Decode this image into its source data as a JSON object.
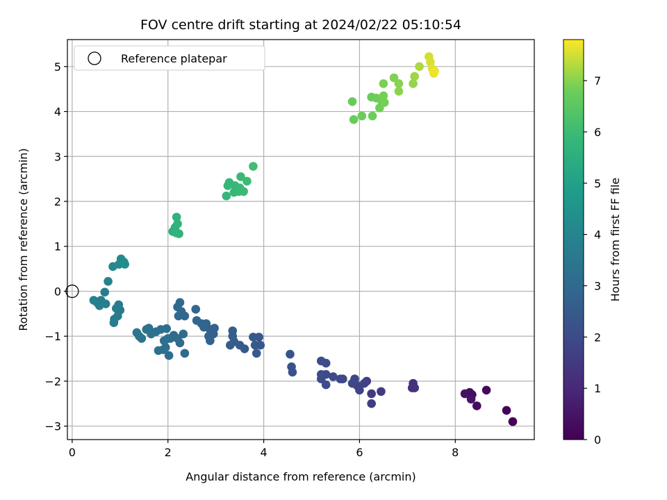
{
  "chart_data": {
    "type": "scatter",
    "title": "FOV centre drift starting at 2024/02/22 05:10:54",
    "xlabel": "Angular distance from reference (arcmin)",
    "ylabel": "Rotation from reference (arcmin)",
    "xlim": [
      -0.1,
      9.65
    ],
    "ylim": [
      -3.3,
      5.6
    ],
    "xticks": [
      0,
      2,
      4,
      6,
      8
    ],
    "yticks": [
      -3,
      -2,
      -1,
      0,
      1,
      2,
      3,
      4,
      5
    ],
    "grid": true,
    "legend": {
      "position": "top-left",
      "entries": [
        "Reference platepar"
      ]
    },
    "reference_point": {
      "x": 0,
      "y": 0
    },
    "colorbar": {
      "label": "Hours from first FF file",
      "range": [
        0,
        7.8
      ],
      "ticks": [
        0,
        1,
        2,
        3,
        4,
        5,
        6,
        7
      ],
      "colormap": "viridis"
    },
    "points": [
      {
        "x": 9.2,
        "y": -2.9,
        "h": 0.05
      },
      {
        "x": 9.07,
        "y": -2.65,
        "h": 0.1
      },
      {
        "x": 8.65,
        "y": -2.2,
        "h": 0.2
      },
      {
        "x": 8.45,
        "y": -2.55,
        "h": 0.25
      },
      {
        "x": 8.35,
        "y": -2.3,
        "h": 0.3
      },
      {
        "x": 8.3,
        "y": -2.25,
        "h": 0.35
      },
      {
        "x": 8.2,
        "y": -2.28,
        "h": 0.4
      },
      {
        "x": 8.33,
        "y": -2.4,
        "h": 0.45
      },
      {
        "x": 7.12,
        "y": -2.05,
        "h": 1.2
      },
      {
        "x": 7.1,
        "y": -2.15,
        "h": 1.25
      },
      {
        "x": 7.15,
        "y": -2.15,
        "h": 1.3
      },
      {
        "x": 6.45,
        "y": -2.23,
        "h": 1.5
      },
      {
        "x": 6.25,
        "y": -2.28,
        "h": 1.55
      },
      {
        "x": 6.25,
        "y": -2.5,
        "h": 1.6
      },
      {
        "x": 6.15,
        "y": -2.0,
        "h": 1.65
      },
      {
        "x": 6.1,
        "y": -2.05,
        "h": 1.7
      },
      {
        "x": 6.0,
        "y": -2.2,
        "h": 1.75
      },
      {
        "x": 5.95,
        "y": -2.1,
        "h": 1.8
      },
      {
        "x": 5.9,
        "y": -1.95,
        "h": 1.85
      },
      {
        "x": 5.85,
        "y": -2.05,
        "h": 1.9
      },
      {
        "x": 5.65,
        "y": -1.95,
        "h": 1.92
      },
      {
        "x": 5.6,
        "y": -1.95,
        "h": 1.95
      },
      {
        "x": 5.45,
        "y": -1.9,
        "h": 1.97
      },
      {
        "x": 5.3,
        "y": -1.85,
        "h": 2.0
      },
      {
        "x": 5.3,
        "y": -2.08,
        "h": 2.02
      },
      {
        "x": 5.3,
        "y": -1.6,
        "h": 2.04
      },
      {
        "x": 5.2,
        "y": -1.55,
        "h": 2.06
      },
      {
        "x": 5.2,
        "y": -1.85,
        "h": 2.08
      },
      {
        "x": 5.2,
        "y": -1.95,
        "h": 2.1
      },
      {
        "x": 4.6,
        "y": -1.8,
        "h": 2.2
      },
      {
        "x": 4.58,
        "y": -1.68,
        "h": 2.22
      },
      {
        "x": 4.55,
        "y": -1.4,
        "h": 2.25
      },
      {
        "x": 3.93,
        "y": -1.2,
        "h": 2.4
      },
      {
        "x": 3.9,
        "y": -1.02,
        "h": 2.42
      },
      {
        "x": 3.85,
        "y": -1.38,
        "h": 2.44
      },
      {
        "x": 3.82,
        "y": -1.2,
        "h": 2.46
      },
      {
        "x": 3.78,
        "y": -1.02,
        "h": 2.48
      },
      {
        "x": 3.6,
        "y": -1.28,
        "h": 2.5
      },
      {
        "x": 3.5,
        "y": -1.2,
        "h": 2.52
      },
      {
        "x": 3.38,
        "y": -1.12,
        "h": 2.55
      },
      {
        "x": 3.35,
        "y": -0.88,
        "h": 2.57
      },
      {
        "x": 3.35,
        "y": -1.0,
        "h": 2.6
      },
      {
        "x": 3.3,
        "y": -1.2,
        "h": 2.62
      },
      {
        "x": 2.97,
        "y": -0.82,
        "h": 2.7
      },
      {
        "x": 2.95,
        "y": -0.95,
        "h": 2.72
      },
      {
        "x": 2.88,
        "y": -0.85,
        "h": 2.74
      },
      {
        "x": 2.88,
        "y": -1.1,
        "h": 2.76
      },
      {
        "x": 2.85,
        "y": -1.0,
        "h": 2.78
      },
      {
        "x": 2.8,
        "y": -0.72,
        "h": 2.8
      },
      {
        "x": 2.75,
        "y": -0.8,
        "h": 2.82
      },
      {
        "x": 2.7,
        "y": -0.72,
        "h": 2.84
      },
      {
        "x": 2.6,
        "y": -0.65,
        "h": 2.86
      },
      {
        "x": 2.58,
        "y": -0.4,
        "h": 2.88
      },
      {
        "x": 2.35,
        "y": -0.55,
        "h": 2.9
      },
      {
        "x": 2.28,
        "y": -0.45,
        "h": 2.92
      },
      {
        "x": 2.25,
        "y": -0.25,
        "h": 2.94
      },
      {
        "x": 2.22,
        "y": -0.55,
        "h": 2.96
      },
      {
        "x": 2.2,
        "y": -0.35,
        "h": 2.98
      },
      {
        "x": 2.35,
        "y": -1.38,
        "h": 3.0
      },
      {
        "x": 2.32,
        "y": -0.95,
        "h": 3.02
      },
      {
        "x": 2.25,
        "y": -1.15,
        "h": 3.04
      },
      {
        "x": 2.2,
        "y": -1.05,
        "h": 3.06
      },
      {
        "x": 2.12,
        "y": -0.98,
        "h": 3.08
      },
      {
        "x": 2.05,
        "y": -1.05,
        "h": 3.1
      },
      {
        "x": 2.02,
        "y": -1.43,
        "h": 3.12
      },
      {
        "x": 2.0,
        "y": -1.05,
        "h": 3.14
      },
      {
        "x": 1.97,
        "y": -0.83,
        "h": 3.16
      },
      {
        "x": 1.95,
        "y": -1.25,
        "h": 3.18
      },
      {
        "x": 1.92,
        "y": -1.1,
        "h": 3.2
      },
      {
        "x": 1.9,
        "y": -1.3,
        "h": 3.22
      },
      {
        "x": 1.85,
        "y": -0.85,
        "h": 3.24
      },
      {
        "x": 1.8,
        "y": -1.32,
        "h": 3.26
      },
      {
        "x": 1.75,
        "y": -0.9,
        "h": 3.28
      },
      {
        "x": 1.65,
        "y": -0.95,
        "h": 3.3
      },
      {
        "x": 1.6,
        "y": -0.82,
        "h": 3.32
      },
      {
        "x": 1.55,
        "y": -0.85,
        "h": 3.34
      },
      {
        "x": 1.45,
        "y": -1.05,
        "h": 3.36
      },
      {
        "x": 1.4,
        "y": -1.0,
        "h": 3.38
      },
      {
        "x": 1.35,
        "y": -0.92,
        "h": 3.4
      },
      {
        "x": 1.0,
        "y": -0.42,
        "h": 3.6
      },
      {
        "x": 0.97,
        "y": -0.3,
        "h": 3.62
      },
      {
        "x": 0.95,
        "y": -0.55,
        "h": 3.64
      },
      {
        "x": 0.92,
        "y": -0.38,
        "h": 3.66
      },
      {
        "x": 0.88,
        "y": -0.62,
        "h": 3.68
      },
      {
        "x": 0.87,
        "y": -0.7,
        "h": 3.7
      },
      {
        "x": 0.7,
        "y": -0.28,
        "h": 3.72
      },
      {
        "x": 0.68,
        "y": -0.02,
        "h": 3.74
      },
      {
        "x": 0.6,
        "y": -0.2,
        "h": 3.76
      },
      {
        "x": 0.57,
        "y": -0.32,
        "h": 3.78
      },
      {
        "x": 0.52,
        "y": -0.25,
        "h": 3.8
      },
      {
        "x": 0.45,
        "y": -0.2,
        "h": 3.82
      },
      {
        "x": 0.75,
        "y": 0.22,
        "h": 3.95
      },
      {
        "x": 0.85,
        "y": 0.55,
        "h": 4.1
      },
      {
        "x": 0.98,
        "y": 0.6,
        "h": 4.15
      },
      {
        "x": 1.02,
        "y": 0.72,
        "h": 4.2
      },
      {
        "x": 1.08,
        "y": 0.65,
        "h": 4.25
      },
      {
        "x": 1.1,
        "y": 0.6,
        "h": 4.3
      },
      {
        "x": 2.1,
        "y": 1.33,
        "h": 5.6
      },
      {
        "x": 2.15,
        "y": 1.42,
        "h": 5.62
      },
      {
        "x": 2.17,
        "y": 1.3,
        "h": 5.64
      },
      {
        "x": 2.18,
        "y": 1.65,
        "h": 5.66
      },
      {
        "x": 2.2,
        "y": 1.5,
        "h": 5.68
      },
      {
        "x": 2.23,
        "y": 1.28,
        "h": 5.7
      },
      {
        "x": 3.22,
        "y": 2.12,
        "h": 5.8
      },
      {
        "x": 3.25,
        "y": 2.35,
        "h": 5.82
      },
      {
        "x": 3.28,
        "y": 2.42,
        "h": 5.84
      },
      {
        "x": 3.38,
        "y": 2.2,
        "h": 5.86
      },
      {
        "x": 3.4,
        "y": 2.35,
        "h": 5.88
      },
      {
        "x": 3.48,
        "y": 2.22,
        "h": 5.9
      },
      {
        "x": 3.5,
        "y": 2.3,
        "h": 5.92
      },
      {
        "x": 3.52,
        "y": 2.55,
        "h": 5.94
      },
      {
        "x": 3.58,
        "y": 2.22,
        "h": 5.96
      },
      {
        "x": 3.65,
        "y": 2.45,
        "h": 5.98
      },
      {
        "x": 3.78,
        "y": 2.78,
        "h": 6.05
      },
      {
        "x": 5.85,
        "y": 4.22,
        "h": 6.7
      },
      {
        "x": 5.88,
        "y": 3.82,
        "h": 6.72
      },
      {
        "x": 6.05,
        "y": 3.9,
        "h": 6.74
      },
      {
        "x": 6.25,
        "y": 4.32,
        "h": 6.76
      },
      {
        "x": 6.27,
        "y": 3.9,
        "h": 6.78
      },
      {
        "x": 6.35,
        "y": 4.3,
        "h": 6.8
      },
      {
        "x": 6.42,
        "y": 4.08,
        "h": 6.82
      },
      {
        "x": 6.45,
        "y": 4.25,
        "h": 6.84
      },
      {
        "x": 6.5,
        "y": 4.35,
        "h": 6.86
      },
      {
        "x": 6.52,
        "y": 4.2,
        "h": 6.88
      },
      {
        "x": 6.5,
        "y": 4.62,
        "h": 6.9
      },
      {
        "x": 6.72,
        "y": 4.75,
        "h": 6.95
      },
      {
        "x": 6.82,
        "y": 4.62,
        "h": 7.0
      },
      {
        "x": 6.82,
        "y": 4.45,
        "h": 7.02
      },
      {
        "x": 7.12,
        "y": 4.62,
        "h": 7.1
      },
      {
        "x": 7.15,
        "y": 4.78,
        "h": 7.15
      },
      {
        "x": 7.25,
        "y": 5.0,
        "h": 7.25
      },
      {
        "x": 7.45,
        "y": 5.22,
        "h": 7.5
      },
      {
        "x": 7.48,
        "y": 5.1,
        "h": 7.55
      },
      {
        "x": 7.52,
        "y": 4.95,
        "h": 7.6
      },
      {
        "x": 7.55,
        "y": 4.85,
        "h": 7.65
      },
      {
        "x": 7.57,
        "y": 4.9,
        "h": 7.7
      }
    ]
  }
}
